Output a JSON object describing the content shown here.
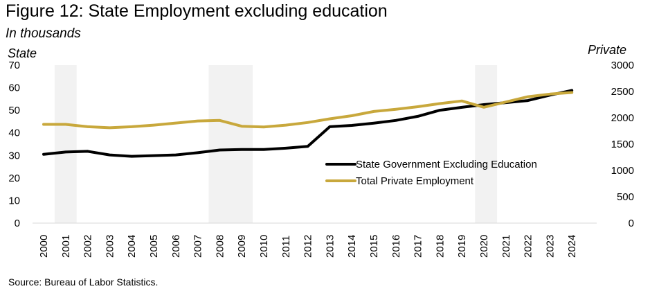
{
  "title": "Figure 12: State Employment excluding education",
  "subtitle": "In thousands",
  "source": "Source: Bureau of Labor Statistics.",
  "chart_data": {
    "type": "line",
    "x": [
      "2000",
      "2001",
      "2002",
      "2003",
      "2004",
      "2005",
      "2006",
      "2007",
      "2008",
      "2009",
      "2010",
      "2011",
      "2012",
      "2013",
      "2014",
      "2015",
      "2016",
      "2017",
      "2018",
      "2019",
      "2020",
      "2021",
      "2022",
      "2023",
      "2024"
    ],
    "left_axis": {
      "label": "State",
      "ylim": [
        0,
        70
      ],
      "ticks": [
        0,
        10,
        20,
        30,
        40,
        50,
        60,
        70
      ]
    },
    "right_axis": {
      "label": "Private",
      "ylim": [
        0,
        3000
      ],
      "ticks": [
        0,
        500,
        1000,
        1500,
        2000,
        2500,
        3000
      ]
    },
    "recession_shading": [
      {
        "from": "2000.5",
        "to": "2001.5",
        "label": "2001"
      },
      {
        "from": "2007.5",
        "to": "2009.5",
        "label": "2008-2009"
      },
      {
        "from": "2019.6",
        "to": "2020.6",
        "label": "2020"
      }
    ],
    "series": [
      {
        "name": "State Government Excluding Education",
        "axis": "left",
        "color": "#000000",
        "values": [
          30.5,
          31.5,
          31.8,
          30.2,
          29.6,
          29.9,
          30.2,
          31.2,
          32.4,
          32.6,
          32.6,
          33.2,
          34.0,
          42.7,
          43.3,
          44.3,
          45.5,
          47.3,
          50.0,
          51.3,
          52.5,
          53.4,
          54.3,
          56.7,
          58.8
        ]
      },
      {
        "name": "Total Private Employment",
        "axis": "right",
        "color": "#c8a83c",
        "values": [
          1875,
          1875,
          1830,
          1810,
          1830,
          1860,
          1900,
          1940,
          1950,
          1840,
          1825,
          1860,
          1910,
          1980,
          2040,
          2120,
          2160,
          2210,
          2270,
          2320,
          2200,
          2300,
          2400,
          2450,
          2480
        ]
      }
    ]
  }
}
